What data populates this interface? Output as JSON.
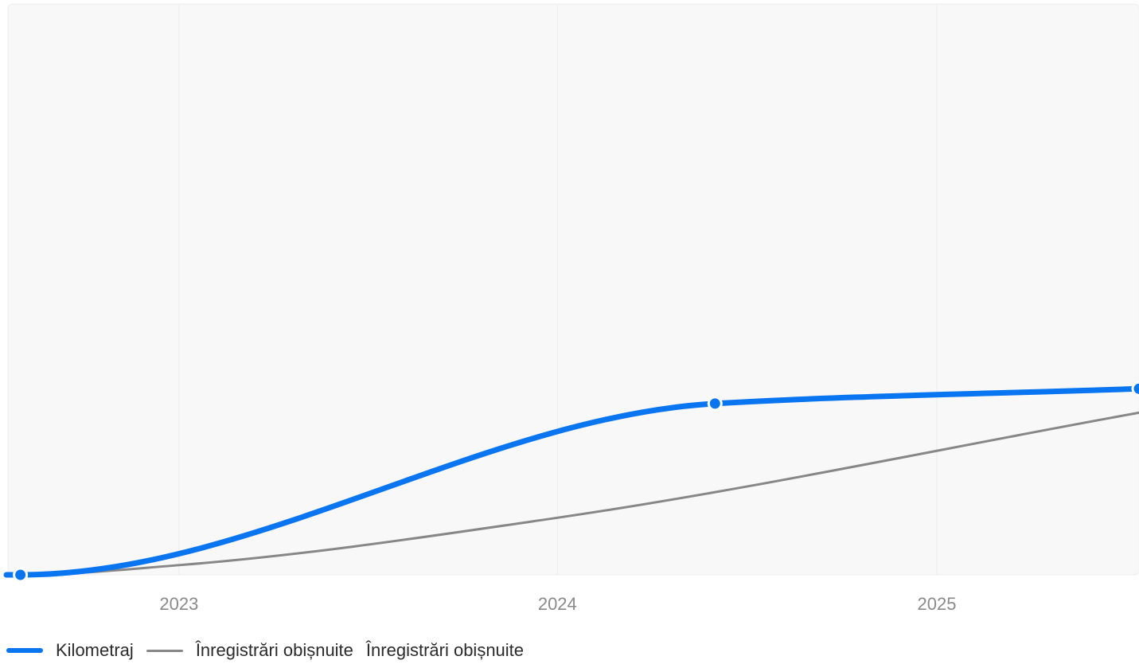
{
  "colors": {
    "mileage": "#0a75f0",
    "regular": "#878787",
    "plot_bg": "#f8f8f8",
    "grid": "#ececec",
    "tick_text": "#8a8a8a"
  },
  "legend": {
    "mileage_label": "Kilometraj",
    "regular_label": "Înregistrări obișnuite",
    "extra_label": "Înregistrări obișnuite"
  },
  "chart_data": {
    "type": "line",
    "title": "",
    "xlabel": "",
    "ylabel": "",
    "x_ticks": [
      "2023",
      "2024",
      "2025"
    ],
    "xlim": [
      "2022-07-20",
      "2025-07-15"
    ],
    "ylim": [
      0,
      100
    ],
    "grid": true,
    "legend_position": "bottom-left",
    "series": [
      {
        "name": "Kilometraj",
        "style": "thick",
        "show_markers": true,
        "points": [
          {
            "date": "2022-08-01",
            "value": 0
          },
          {
            "date": "2024-06-01",
            "value": 30
          },
          {
            "date": "2025-07-15",
            "value": 32.6
          }
        ]
      },
      {
        "name": "Înregistrări obișnuite",
        "style": "thin",
        "show_markers": false,
        "points": [
          {
            "date": "2022-08-01",
            "value": 0
          },
          {
            "date": "2023-01-01",
            "value": 1.7
          },
          {
            "date": "2024-01-01",
            "value": 10
          },
          {
            "date": "2025-07-15",
            "value": 28.4
          }
        ]
      }
    ]
  }
}
